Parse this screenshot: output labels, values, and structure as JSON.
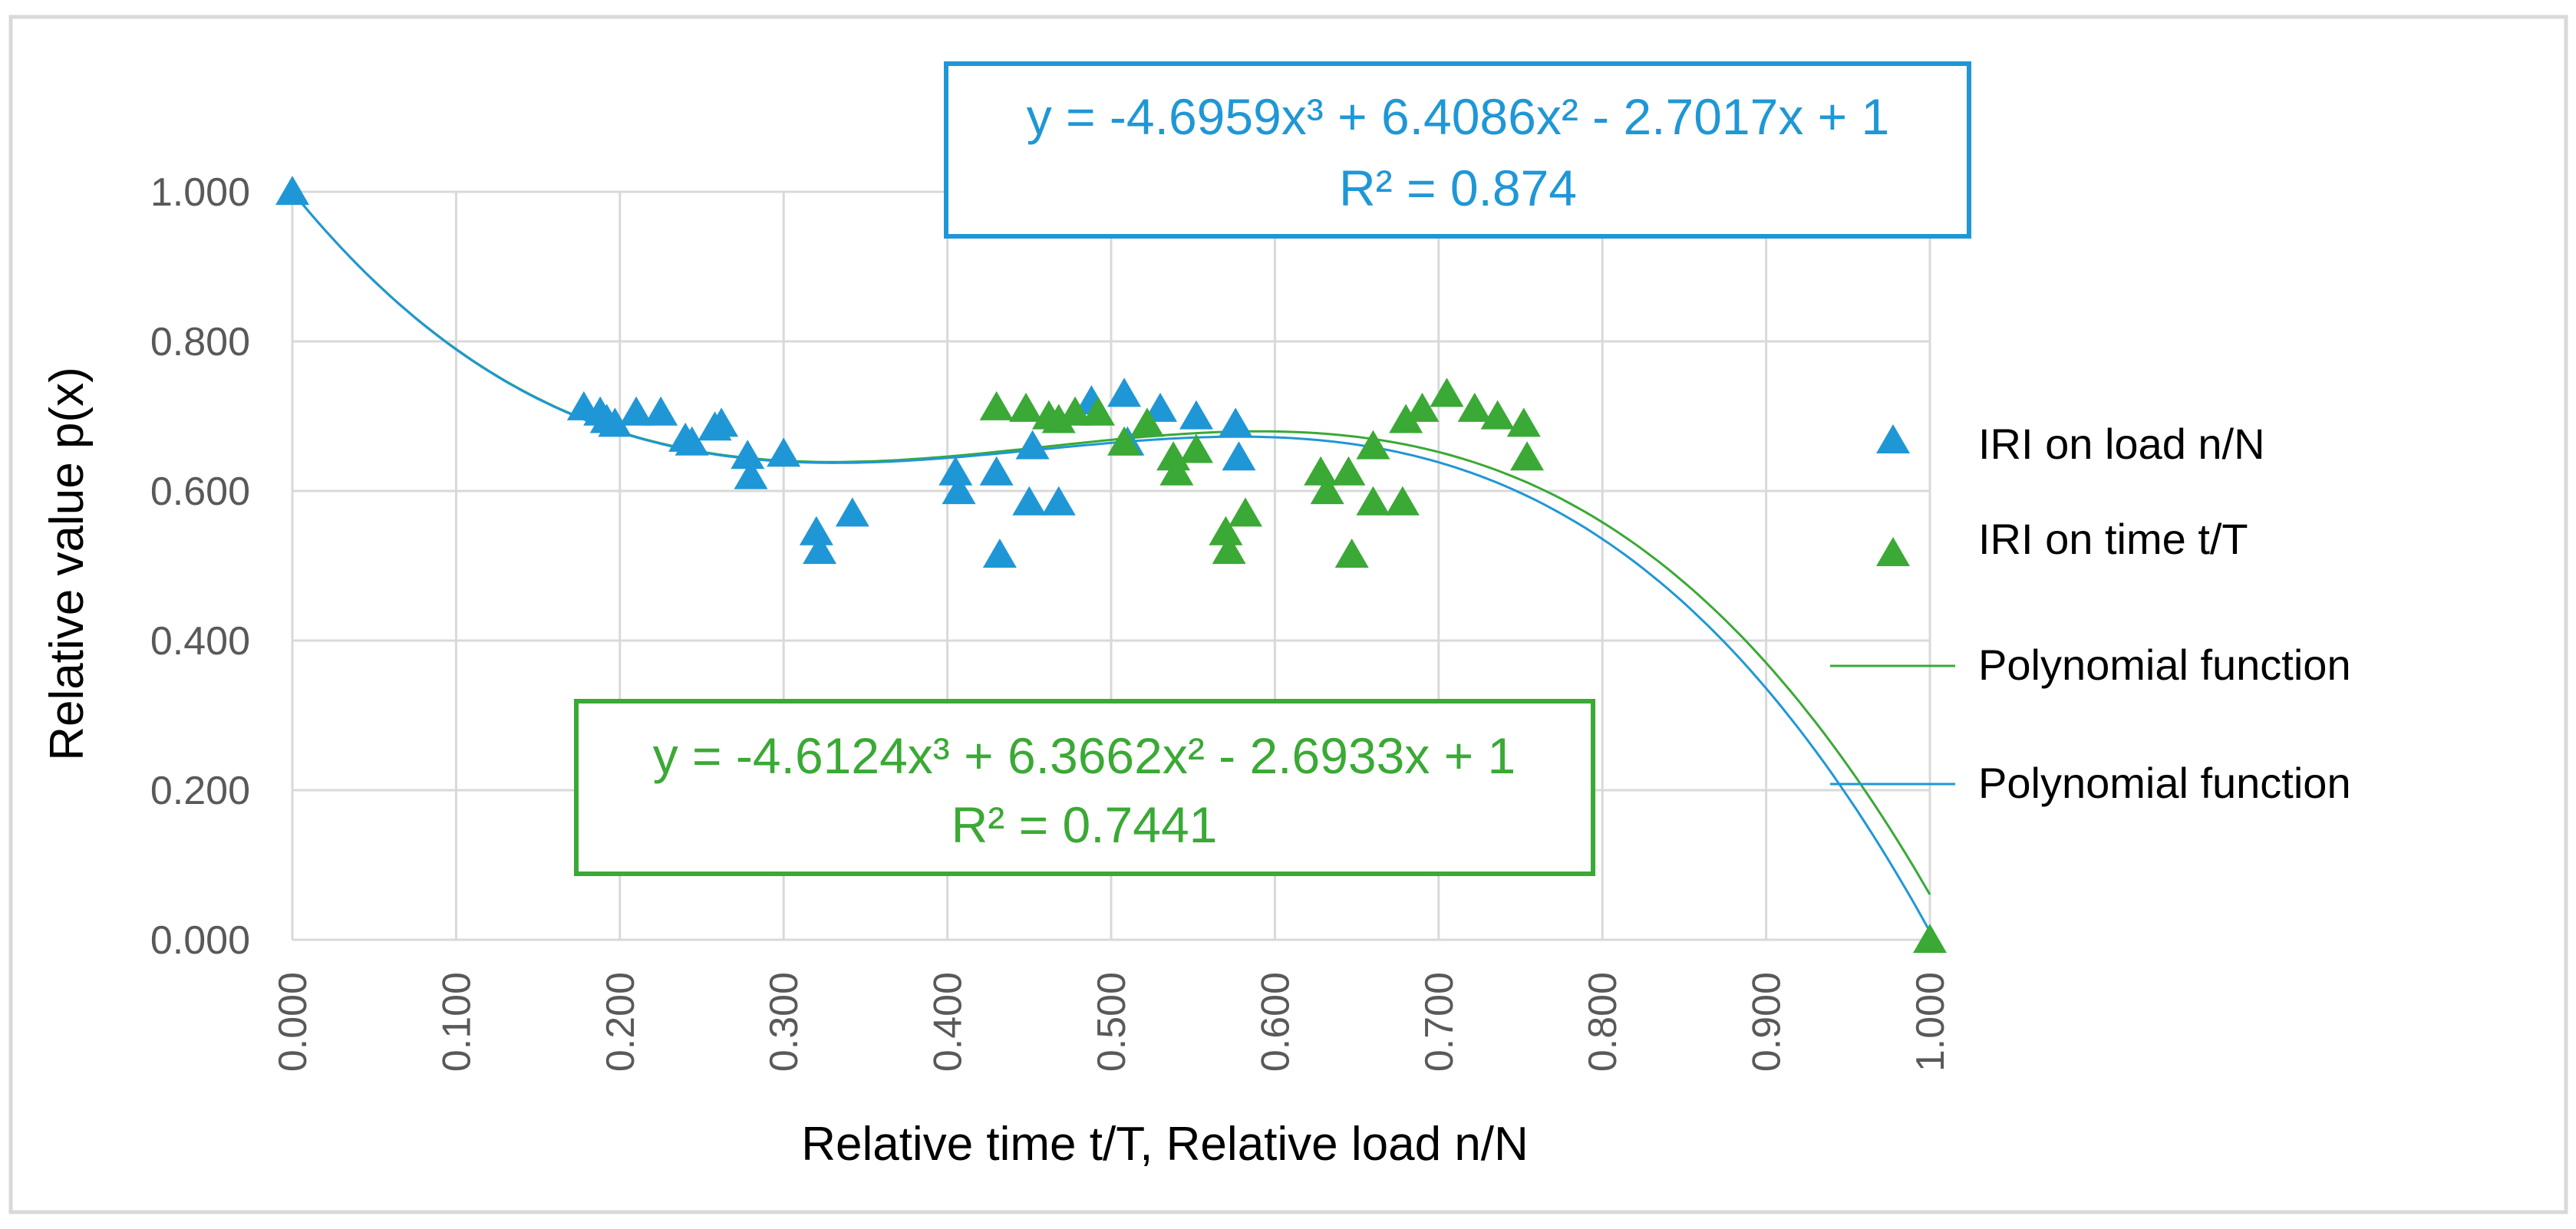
{
  "chart_data": {
    "type": "scatter",
    "title": "",
    "xlabel": "Relative time t/T, Relative load n/N",
    "ylabel": "Relative value p(x)",
    "xlim": [
      0,
      1
    ],
    "ylim": [
      0,
      1
    ],
    "x_ticks": [
      "0.000",
      "0.100",
      "0.200",
      "0.300",
      "0.400",
      "0.500",
      "0.600",
      "0.700",
      "0.800",
      "0.900",
      "1.000"
    ],
    "y_ticks": [
      "0.000",
      "0.200",
      "0.400",
      "0.600",
      "0.800",
      "1.000"
    ],
    "grid": true,
    "legend_position": "right",
    "series": [
      {
        "name": "IRI on load n/N",
        "kind": "scatter",
        "marker": "triangle",
        "color": "#1f97d6",
        "x": [
          0,
          0.178,
          0.188,
          0.192,
          0.197,
          0.21,
          0.225,
          0.24,
          0.244,
          0.258,
          0.262,
          0.278,
          0.28,
          0.3,
          0.32,
          0.322,
          0.342,
          0.405,
          0.407,
          0.43,
          0.432,
          0.45,
          0.452,
          0.468,
          0.488,
          0.508,
          0.51,
          0.53,
          0.552,
          0.576,
          0.578
        ],
        "y": [
          1.0,
          0.712,
          0.705,
          0.695,
          0.69,
          0.705,
          0.705,
          0.67,
          0.665,
          0.685,
          0.69,
          0.647,
          0.62,
          0.65,
          0.545,
          0.52,
          0.57,
          0.625,
          0.6,
          0.625,
          0.515,
          0.585,
          0.66,
          0.585,
          0.72,
          0.73,
          0.665,
          0.71,
          0.7,
          0.69,
          0.645
        ]
      },
      {
        "name": "IRI on time t/T",
        "kind": "scatter",
        "marker": "triangle",
        "color": "#3aa935",
        "x": [
          0.43,
          0.448,
          0.462,
          0.468,
          0.478,
          0.492,
          0.508,
          0.522,
          0.538,
          0.54,
          0.552,
          0.57,
          0.572,
          0.582,
          0.628,
          0.632,
          0.645,
          0.647,
          0.66,
          0.66,
          0.678,
          0.68,
          0.69,
          0.705,
          0.722,
          0.736,
          0.752,
          0.754,
          1.0
        ],
        "y": [
          0.712,
          0.71,
          0.7,
          0.695,
          0.705,
          0.705,
          0.665,
          0.69,
          0.645,
          0.625,
          0.655,
          0.545,
          0.52,
          0.57,
          0.625,
          0.6,
          0.625,
          0.515,
          0.585,
          0.66,
          0.585,
          0.695,
          0.71,
          0.73,
          0.71,
          0.7,
          0.69,
          0.645,
          0.0
        ]
      },
      {
        "name": "Polynomial function",
        "kind": "trendline",
        "color": "#3aa935",
        "coefficients": [
          -4.6124,
          6.3662,
          -2.6933,
          1
        ]
      },
      {
        "name": "Polynomial function",
        "kind": "trendline",
        "color": "#1f97d6",
        "coefficients": [
          -4.6959,
          6.4086,
          -2.7017,
          1
        ]
      }
    ],
    "annotations": [
      {
        "color": "#1f97d6",
        "equation": "y = -4.6959x³ + 6.4086x² - 2.7017x + 1",
        "r2": "R² = 0.874"
      },
      {
        "color": "#3aa935",
        "equation": "y = -4.6124x³ + 6.3662x² - 2.6933x + 1",
        "r2": "R² = 0.7441"
      }
    ]
  }
}
